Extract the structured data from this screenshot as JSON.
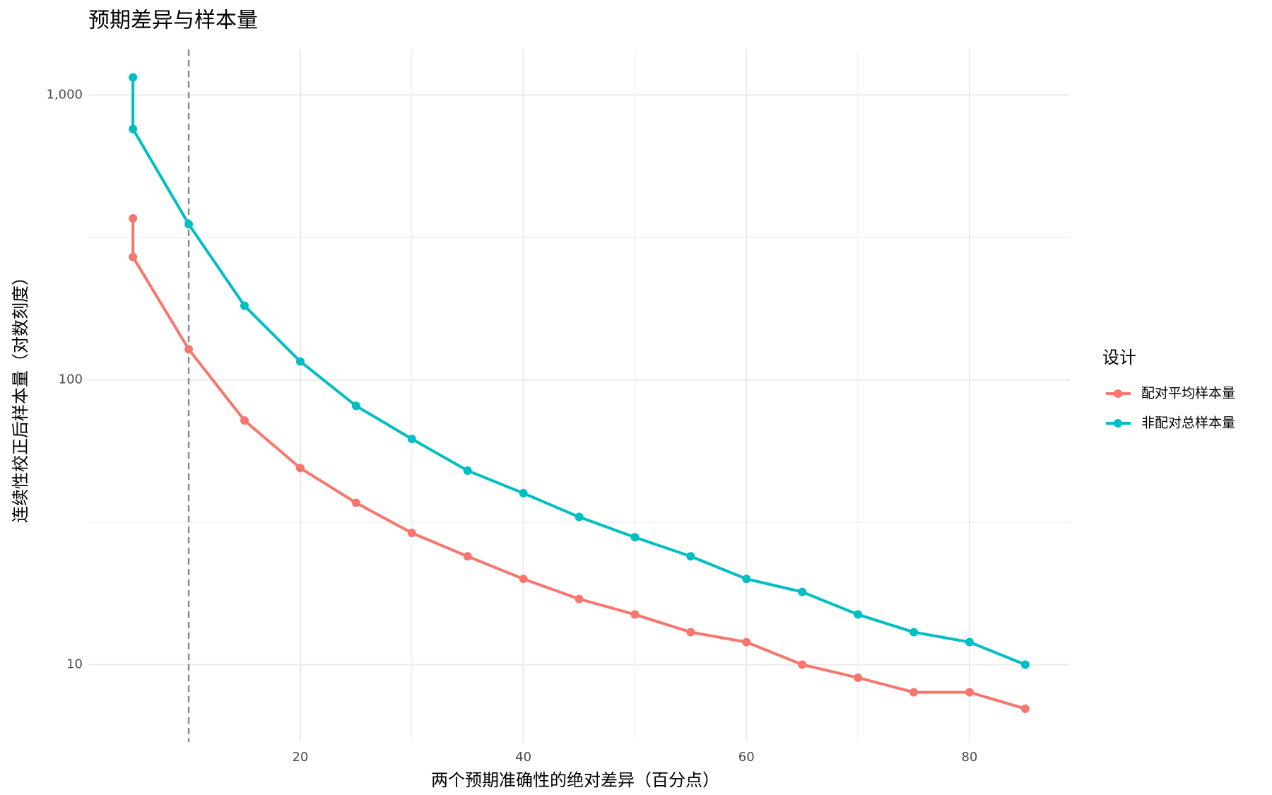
{
  "chart_data": {
    "type": "line",
    "title": "预期差异与样本量",
    "xlabel": "两个预期准确性的绝对差异（百分点）",
    "ylabel": "连续性校正后样本量（对数刻度）",
    "x": [
      5,
      5,
      10,
      15,
      20,
      25,
      30,
      35,
      40,
      45,
      50,
      55,
      60,
      65,
      70,
      75,
      80,
      85
    ],
    "series": [
      {
        "name": "配对平均样本量",
        "color": "#f8766d",
        "values": [
          369,
          270,
          128,
          72,
          49,
          37,
          29,
          24,
          20,
          17,
          15,
          13,
          12,
          10,
          9,
          8,
          8,
          7
        ]
      },
      {
        "name": "非配对总样本量",
        "color": "#00bfc4",
        "values": [
          1153,
          760,
          352,
          182,
          116,
          81,
          62,
          48,
          40,
          33,
          28,
          24,
          20,
          18,
          15,
          13,
          12,
          10
        ]
      }
    ],
    "legend_title": "设计",
    "legend_position": "right",
    "xlim": [
      1,
      89
    ],
    "xticks": [
      20,
      40,
      60,
      80
    ],
    "ylim": [
      5.35,
      1445
    ],
    "yticks": [
      10,
      100,
      {
        "value": 1000,
        "label": "1,000"
      }
    ],
    "ylog": true,
    "grid": true,
    "vline": 10
  }
}
